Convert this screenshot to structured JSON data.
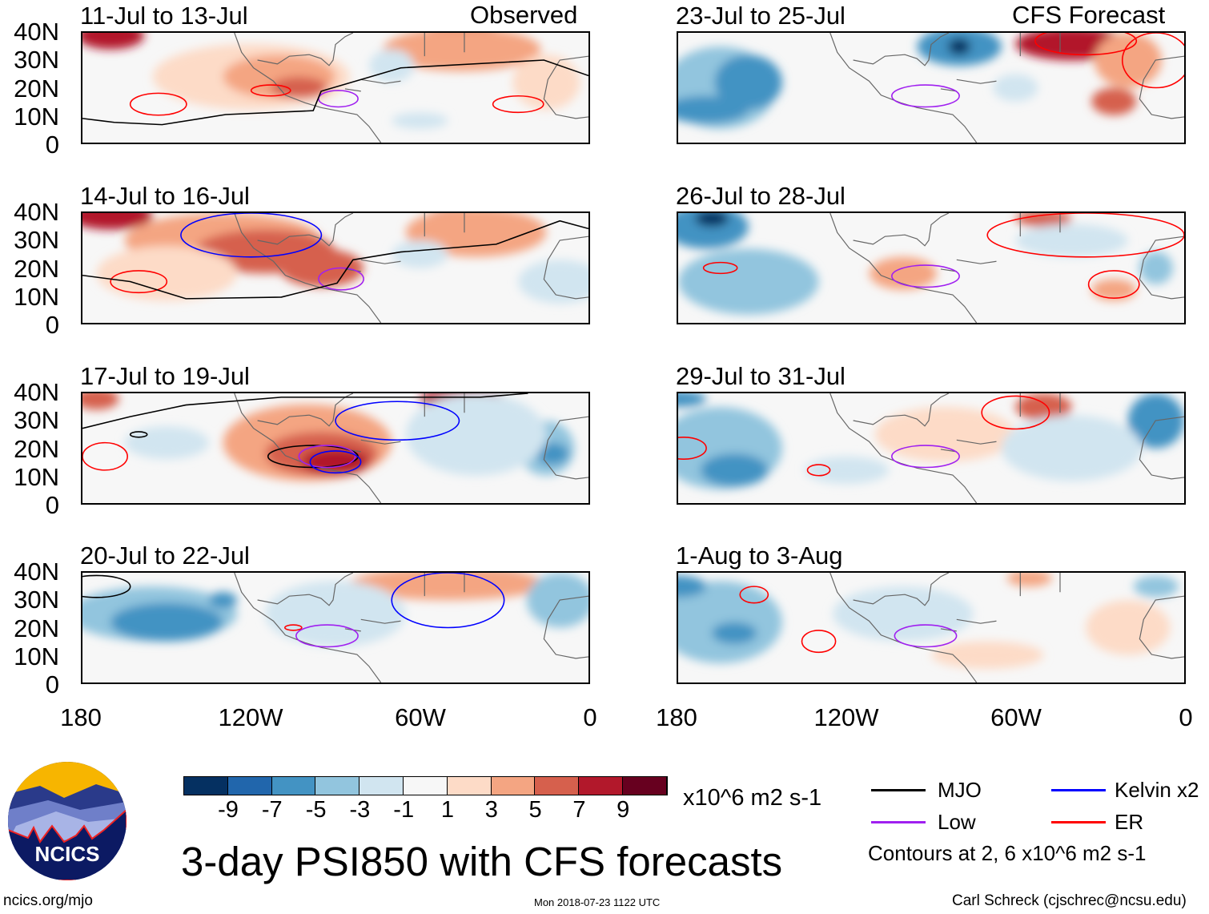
{
  "header": {
    "left_label": "Observed",
    "right_label": "CFS Forecast"
  },
  "panels": [
    {
      "title": "11-Jul to 13-Jul",
      "column": "observed"
    },
    {
      "title": "14-Jul to 16-Jul",
      "column": "observed"
    },
    {
      "title": "17-Jul to 19-Jul",
      "column": "observed"
    },
    {
      "title": "20-Jul to 22-Jul",
      "column": "observed"
    },
    {
      "title": "23-Jul to 25-Jul",
      "column": "forecast"
    },
    {
      "title": "26-Jul to 28-Jul",
      "column": "forecast"
    },
    {
      "title": "29-Jul to 31-Jul",
      "column": "forecast"
    },
    {
      "title": "1-Aug to 3-Aug",
      "column": "forecast"
    }
  ],
  "lat_labels": [
    "40N",
    "30N",
    "20N",
    "10N",
    "0"
  ],
  "lon_labels": [
    "180",
    "120W",
    "60W",
    "0"
  ],
  "colorbar": {
    "colors": [
      "#053061",
      "#2166ac",
      "#4393c3",
      "#92c5de",
      "#d1e5f0",
      "#f7f7f7",
      "#fddbc7",
      "#f4a582",
      "#d6604d",
      "#b2182b",
      "#67001f"
    ],
    "labels": [
      "-9",
      "-7",
      "-5",
      "-3",
      "-1",
      "1",
      "3",
      "5",
      "7",
      "9"
    ],
    "units": "x10^6 m2 s-1"
  },
  "title": "3-day PSI850 with CFS forecasts",
  "legend": {
    "items": [
      {
        "label": "MJO",
        "color": "#000000"
      },
      {
        "label": "Kelvin x2",
        "color": "#0000ff"
      },
      {
        "label": "Low",
        "color": "#a020f0"
      },
      {
        "label": "ER",
        "color": "#ff0000"
      }
    ],
    "note": "Contours at 2, 6 x10^6 m2 s-1"
  },
  "logo": {
    "text": "NCICS"
  },
  "footer": {
    "url": "ncics.org/mjo",
    "timestamp": "Mon 2018-07-23 1122 UTC",
    "author": "Carl Schreck (cjschrec@ncsu.edu)"
  }
}
